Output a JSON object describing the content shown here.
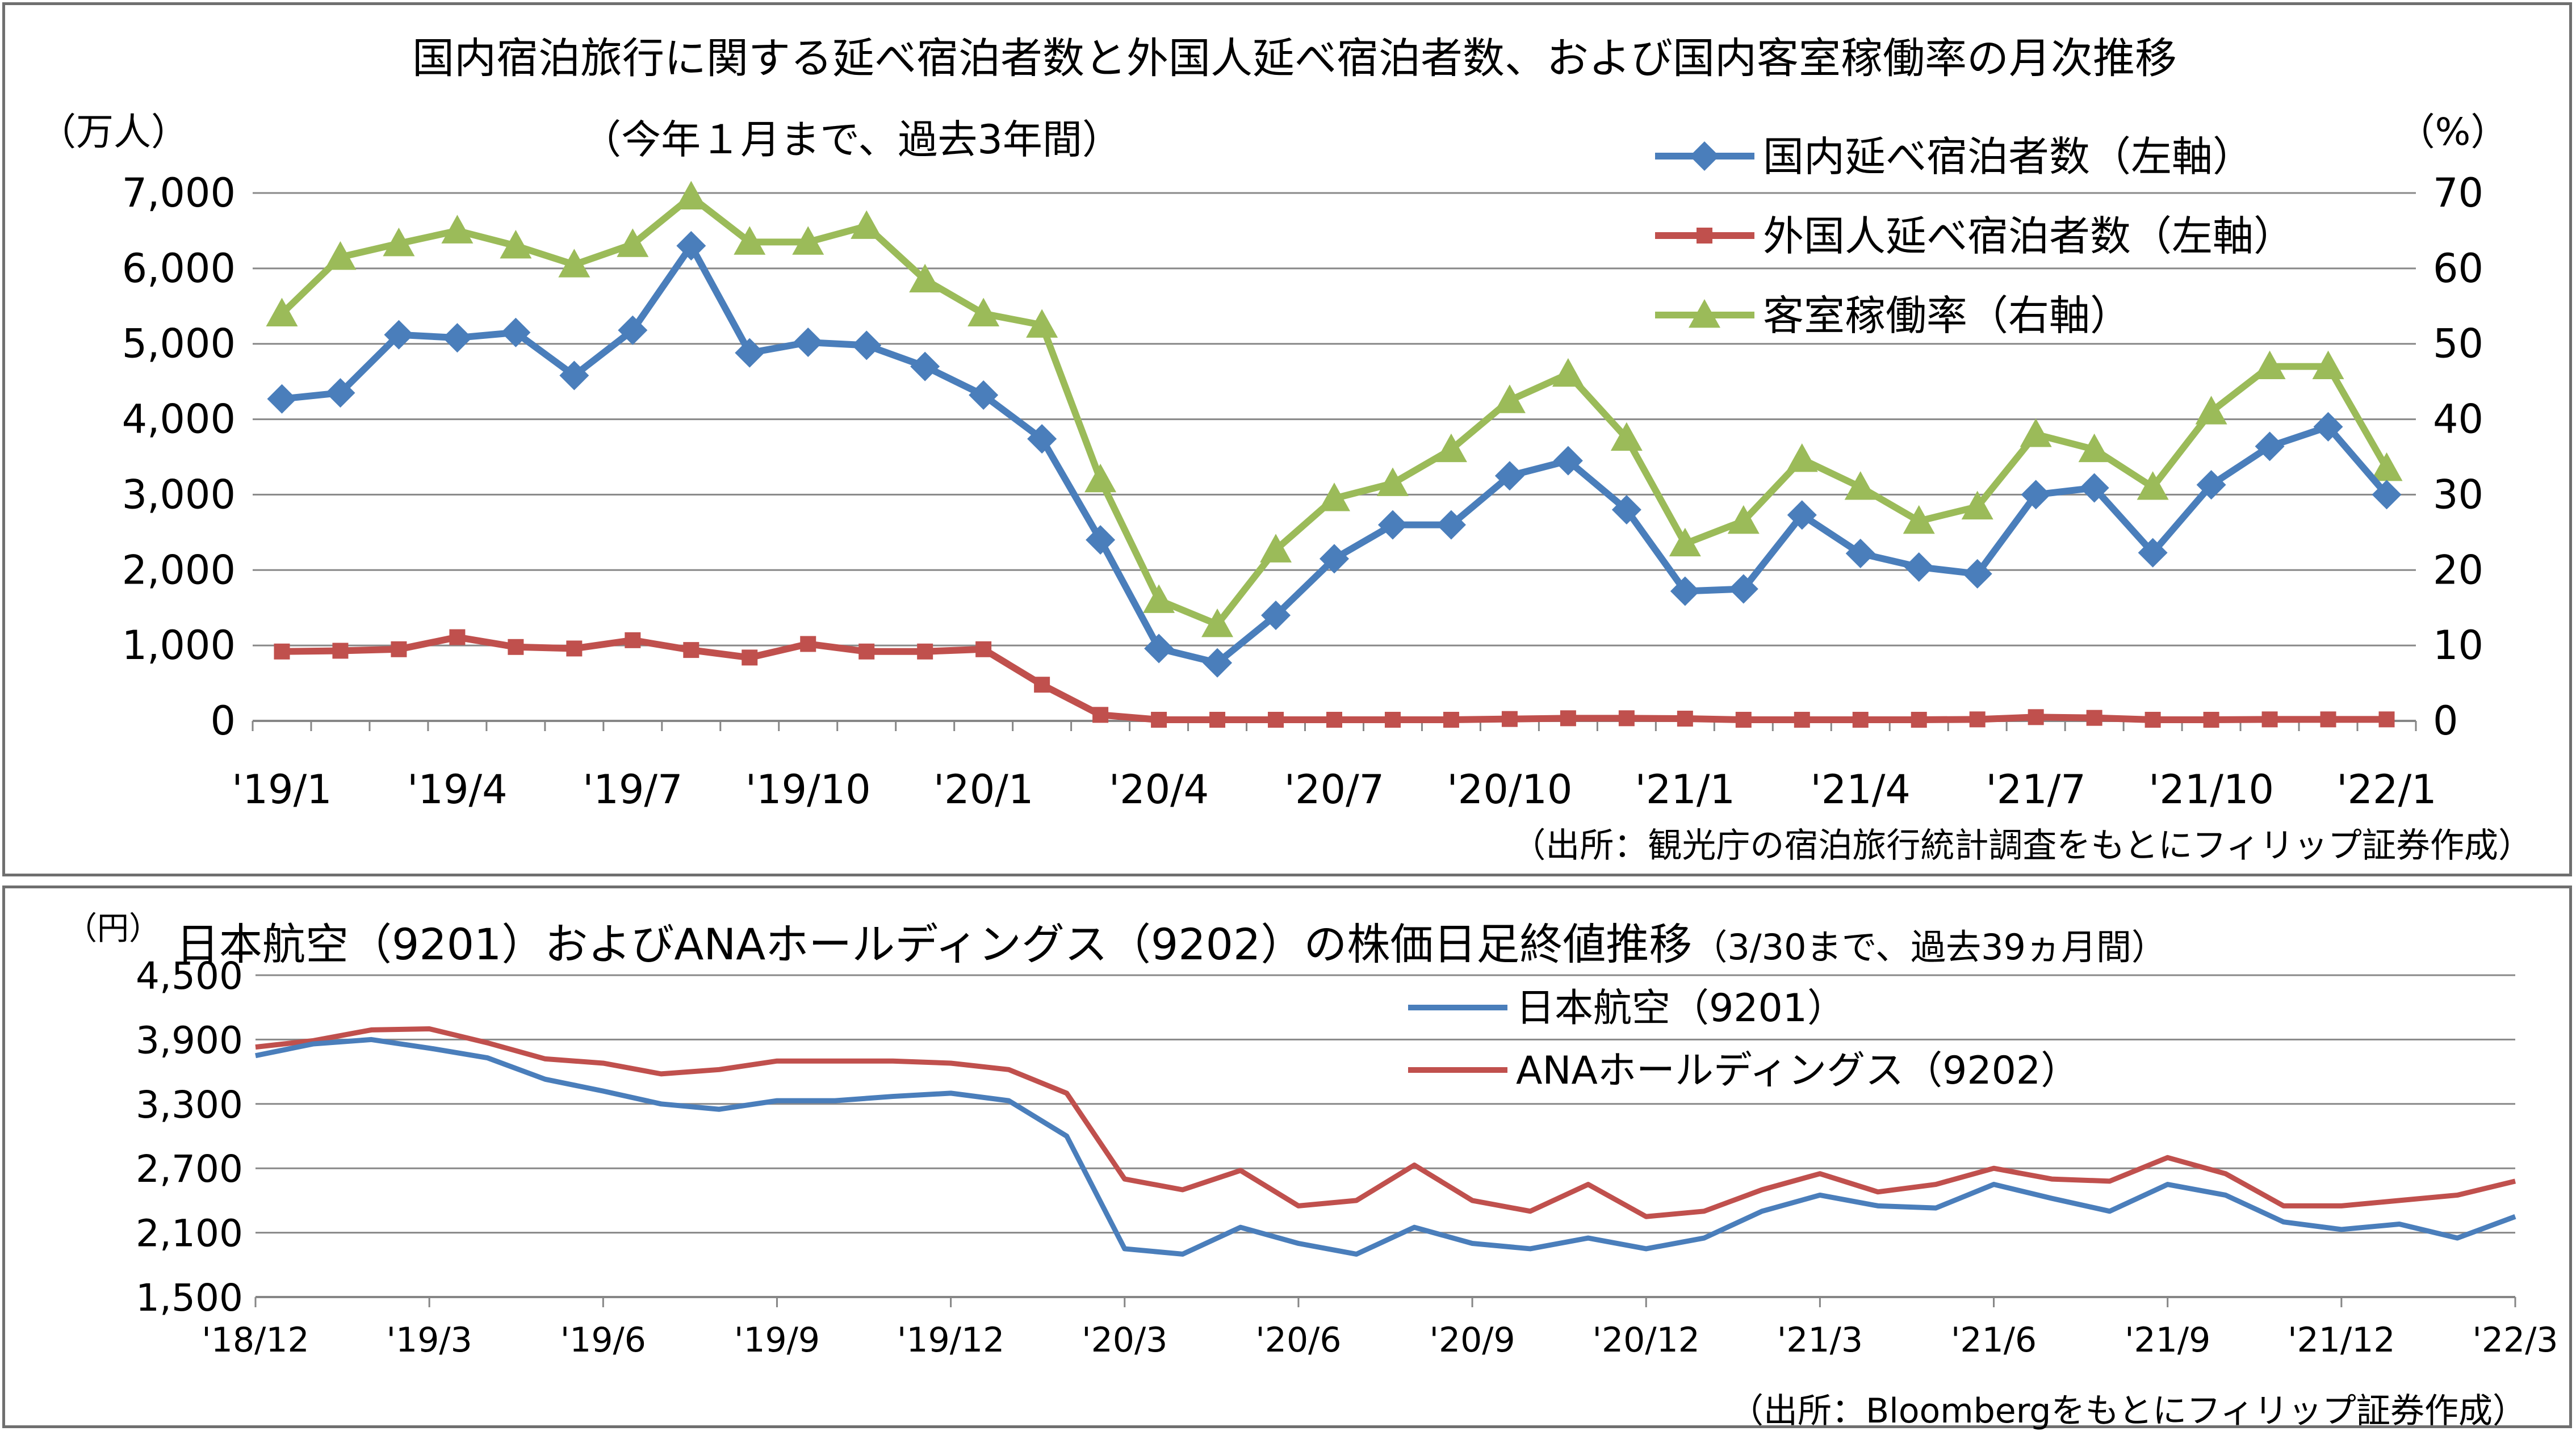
{
  "colors": {
    "blue": "#4a7ebb",
    "red": "#c0504d",
    "green": "#9bbb59",
    "grid": "#888888",
    "axis": "#868686"
  },
  "chart_data": [
    {
      "type": "line",
      "title": "国内宿泊旅行に関する延べ宿泊者数と外国人延べ宿泊者数、および国内客室稼働率の月次推移",
      "subtitle": "（今年１月まで、過去3年間）",
      "ylabel_left": "（万人）",
      "ylabel_right": "（%）",
      "source": "（出所：観光庁の宿泊旅行統計調査をもとにフィリップ証券作成）",
      "x": [
        "'19/1",
        "'19/2",
        "'19/3",
        "'19/4",
        "'19/5",
        "'19/6",
        "'19/7",
        "'19/8",
        "'19/9",
        "'19/10",
        "'19/11",
        "'19/12",
        "'20/1",
        "'20/2",
        "'20/3",
        "'20/4",
        "'20/5",
        "'20/6",
        "'20/7",
        "'20/8",
        "'20/9",
        "'20/10",
        "'20/11",
        "'20/12",
        "'21/1",
        "'21/2",
        "'21/3",
        "'21/4",
        "'21/5",
        "'21/6",
        "'21/7",
        "'21/8",
        "'21/9",
        "'21/10",
        "'21/11",
        "'21/12",
        "'22/1"
      ],
      "xtick_labels": [
        "'19/1",
        "'19/4",
        "'19/7",
        "'19/10",
        "'20/1",
        "'20/4",
        "'20/7",
        "'20/10",
        "'21/1",
        "'21/4",
        "'21/7",
        "'21/10",
        "'22/1"
      ],
      "ylim_left": [
        0,
        7000
      ],
      "ylim_right": [
        0,
        70
      ],
      "yticks_left": [
        "7,000",
        "6,000",
        "5,000",
        "4,000",
        "3,000",
        "2,000",
        "1,000",
        "0"
      ],
      "yticks_right": [
        "70",
        "60",
        "50",
        "40",
        "30",
        "20",
        "10",
        "0"
      ],
      "legend_position": "top-right",
      "series": [
        {
          "name": "国内延べ宿泊者数（左軸）",
          "axis": "left",
          "marker": "diamond",
          "values": [
            4270,
            4350,
            5120,
            5080,
            5150,
            4580,
            5180,
            6300,
            4880,
            5020,
            4980,
            4700,
            4320,
            3740,
            2400,
            960,
            770,
            1400,
            2150,
            2600,
            2600,
            3250,
            3450,
            2800,
            1720,
            1750,
            2730,
            2220,
            2040,
            1950,
            3000,
            3090,
            2230,
            3130,
            3640,
            3900,
            3000
          ]
        },
        {
          "name": "外国人延べ宿泊者数（左軸）",
          "axis": "left",
          "marker": "square",
          "values": [
            920,
            930,
            950,
            1110,
            980,
            960,
            1070,
            940,
            840,
            1020,
            920,
            920,
            950,
            480,
            80,
            15,
            15,
            15,
            15,
            15,
            15,
            25,
            35,
            35,
            30,
            15,
            15,
            15,
            15,
            20,
            50,
            40,
            15,
            15,
            20,
            20,
            20
          ]
        },
        {
          "name": "客室稼働率（右軸）",
          "axis": "right",
          "marker": "triangle",
          "values": [
            54,
            61.5,
            63.3,
            65,
            63,
            60.5,
            63.2,
            69.5,
            63.5,
            63.5,
            65.6,
            58.5,
            54,
            52.5,
            32,
            16,
            12.8,
            22.7,
            29.5,
            31.5,
            36,
            42.5,
            46,
            37.5,
            23.5,
            26.5,
            34.7,
            31,
            26.5,
            28.4,
            38,
            36,
            31,
            41,
            47,
            47,
            33.5
          ]
        }
      ]
    },
    {
      "type": "line",
      "title": "日本航空（9201）およびANAホールディングス（9202）の株価日足終値推移",
      "subtitle": "（3/30まで、過去39ヵ月間）",
      "ylabel": "（円）",
      "source": "（出所：Bloombergをもとにフィリップ証券作成）",
      "x": [
        "'18/12",
        "'19/1",
        "'19/2",
        "'19/3",
        "'19/4",
        "'19/5",
        "'19/6",
        "'19/7",
        "'19/8",
        "'19/9",
        "'19/10",
        "'19/11",
        "'19/12",
        "'20/1",
        "'20/2",
        "'20/3",
        "'20/4",
        "'20/5",
        "'20/6",
        "'20/7",
        "'20/8",
        "'20/9",
        "'20/10",
        "'20/11",
        "'20/12",
        "'21/1",
        "'21/2",
        "'21/3",
        "'21/4",
        "'21/5",
        "'21/6",
        "'21/7",
        "'21/8",
        "'21/9",
        "'21/10",
        "'21/11",
        "'21/12",
        "'22/1",
        "'22/2",
        "'22/3"
      ],
      "xtick_labels": [
        "'18/12",
        "'19/3",
        "'19/6",
        "'19/9",
        "'19/12",
        "'20/3",
        "'20/6",
        "'20/9",
        "'20/12",
        "'21/3",
        "'21/6",
        "'21/9",
        "'21/12",
        "'22/3"
      ],
      "ylim": [
        1500,
        4500
      ],
      "yticks": [
        "4,500",
        "3,900",
        "3,300",
        "2,700",
        "2,100",
        "1,500"
      ],
      "legend_position": "top-center",
      "series": [
        {
          "name": "日本航空（9201）",
          "values": [
            3750,
            3860,
            3900,
            3820,
            3730,
            3530,
            3420,
            3300,
            3250,
            3330,
            3330,
            3370,
            3400,
            3330,
            3000,
            1950,
            1900,
            2150,
            2000,
            1900,
            2150,
            2000,
            1950,
            2050,
            1950,
            2050,
            2300,
            2450,
            2350,
            2330,
            2550,
            2420,
            2300,
            2550,
            2450,
            2200,
            2130,
            2180,
            2050,
            2250
          ]
        },
        {
          "name": "ANAホールディングス（9202）",
          "values": [
            3830,
            3890,
            3990,
            4000,
            3870,
            3720,
            3680,
            3580,
            3620,
            3700,
            3700,
            3700,
            3680,
            3620,
            3400,
            2600,
            2500,
            2680,
            2350,
            2400,
            2730,
            2400,
            2300,
            2550,
            2250,
            2300,
            2500,
            2650,
            2480,
            2550,
            2700,
            2600,
            2580,
            2800,
            2650,
            2350,
            2350,
            2400,
            2450,
            2580
          ]
        }
      ]
    }
  ]
}
